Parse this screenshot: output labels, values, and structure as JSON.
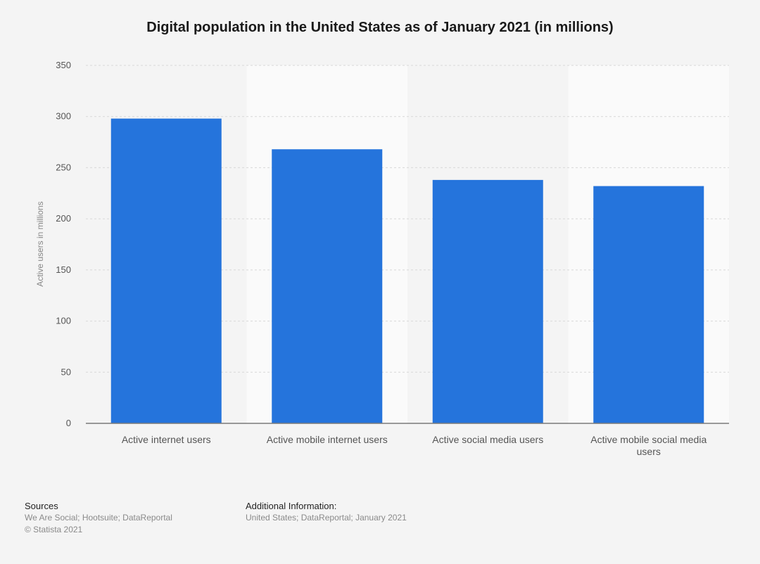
{
  "chart_data": {
    "type": "bar",
    "title": "Digital population in the United States as of January 2021 (in millions)",
    "categories": [
      [
        "Active internet users"
      ],
      [
        "Active mobile internet users"
      ],
      [
        "Active social media users"
      ],
      [
        "Active mobile social media",
        "users"
      ]
    ],
    "values": [
      298,
      268,
      238,
      232
    ],
    "ylabel": "Active users in millions",
    "xlabel": "",
    "ylim": [
      0,
      350
    ],
    "yticks": [
      0,
      50,
      100,
      150,
      200,
      250,
      300,
      350
    ],
    "grid": true,
    "bar_color": "#2574dc",
    "band_color": "#fafafa"
  },
  "footer": {
    "sources_heading": "Sources",
    "sources_line1": "We Are Social; Hootsuite; DataReportal",
    "sources_line2": "© Statista 2021",
    "additional_heading": "Additional Information:",
    "additional_text": "United States; DataReportal; January 2021"
  }
}
